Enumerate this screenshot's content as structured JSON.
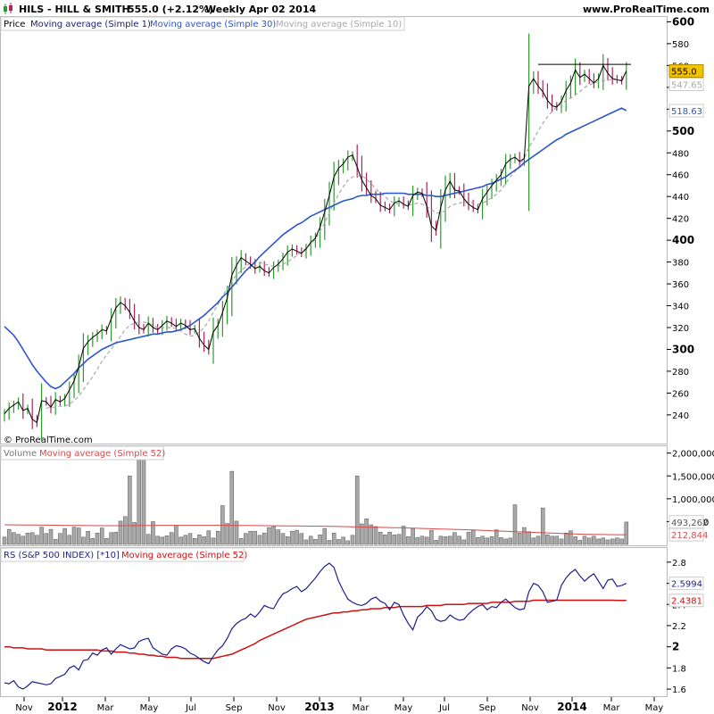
{
  "header": {
    "symbol": "HILS - HILL & SMITH",
    "last_change": "555.0 (+2.12%)",
    "period_date": "Weekly  Apr 02 2014",
    "website": "www.ProRealTime.com",
    "copyright": "© ProRealTime.com"
  },
  "colors": {
    "up_bar": "#2e9a2e",
    "down_bar": "#b0245a",
    "close_line": "#000000",
    "ma1": "#1b1b7a",
    "ma30": "#2a55d0",
    "ma10": "#a8a8a8",
    "volume_bar": "#a9a9a9",
    "vol_ma": "#d84a4a",
    "rs_line": "#1e1e8c",
    "rs_ma": "#d01010",
    "last_price_badge": "#f2c200"
  },
  "chart_data": [
    {
      "type": "ohlc",
      "name": "price",
      "legend": [
        "Price",
        "Moving average (Simple 1)",
        "Moving average (Simple 30)",
        "Moving average (Simple 10)"
      ],
      "x_ticks": [
        "Nov",
        "2012",
        "Mar",
        "May",
        "Jul",
        "Sep",
        "Nov",
        "2013",
        "Mar",
        "May",
        "Jul",
        "Sep",
        "Nov",
        "2014",
        "Mar",
        "May"
      ],
      "bold_x_ticks": [
        "2012",
        "2013",
        "2014"
      ],
      "y_ticks": [
        "240",
        "260",
        "280",
        "300",
        "320",
        "340",
        "360",
        "380",
        "400",
        "420",
        "440",
        "460",
        "480",
        "500",
        "520",
        "540",
        "560",
        "580",
        "600"
      ],
      "bold_y_ticks": [
        "300",
        "400",
        "500",
        "600"
      ],
      "ylim": [
        226,
        602
      ],
      "closes": [
        241,
        246,
        249,
        252,
        244,
        246,
        236,
        233,
        253,
        252,
        247,
        254,
        252,
        255,
        263,
        271,
        284,
        301,
        307,
        311,
        314,
        318,
        317,
        328,
        338,
        343,
        340,
        334,
        326,
        320,
        318,
        324,
        320,
        318,
        322,
        326,
        324,
        321,
        324,
        322,
        318,
        319,
        310,
        304,
        300,
        316,
        322,
        334,
        347,
        368,
        377,
        384,
        381,
        378,
        374,
        376,
        372,
        370,
        375,
        378,
        383,
        389,
        392,
        390,
        388,
        392,
        398,
        402,
        412,
        426,
        441,
        458,
        466,
        470,
        476,
        478,
        467,
        455,
        448,
        441,
        438,
        432,
        430,
        428,
        434,
        436,
        433,
        431,
        441,
        444,
        443,
        431,
        413,
        409,
        430,
        446,
        454,
        446,
        445,
        438,
        433,
        430,
        428,
        438,
        444,
        450,
        455,
        460,
        470,
        474,
        476,
        472,
        475,
        541,
        548,
        541,
        536,
        528,
        523,
        522,
        527,
        537,
        544,
        556,
        549,
        552,
        548,
        544,
        548,
        560,
        553,
        548,
        547,
        546,
        555
      ],
      "ma30_values": [
        321,
        317,
        313,
        307,
        300,
        293,
        286,
        280,
        275,
        270,
        266,
        264,
        266,
        270,
        274,
        278,
        283,
        287,
        291,
        294,
        297,
        300,
        302,
        304,
        306,
        307,
        308,
        309,
        310,
        311,
        312,
        313,
        314,
        314,
        315,
        316,
        316,
        317,
        318,
        320,
        322,
        325,
        328,
        331,
        335,
        339,
        343,
        348,
        352,
        357,
        362,
        367,
        372,
        376,
        380,
        385,
        389,
        393,
        397,
        401,
        405,
        408,
        411,
        414,
        416,
        419,
        422,
        424,
        426,
        428,
        430,
        432,
        434,
        436,
        437,
        438,
        440,
        441,
        441,
        442,
        442,
        442,
        443,
        443,
        443,
        443,
        443,
        442,
        442,
        442,
        442,
        441,
        441,
        440,
        440,
        441,
        442,
        443,
        444,
        445,
        446,
        447,
        448,
        449,
        451,
        452,
        454,
        456,
        458,
        461,
        464,
        467,
        471,
        474,
        477,
        480,
        483,
        486,
        489,
        492,
        494,
        497,
        499,
        501,
        503,
        505,
        507,
        509,
        511,
        513,
        515,
        517,
        519,
        521,
        518.63
      ],
      "ma10_values": [
        null,
        null,
        null,
        null,
        null,
        null,
        null,
        null,
        null,
        246,
        247,
        247,
        248,
        248,
        250,
        253,
        257,
        263,
        269,
        275,
        282,
        289,
        295,
        300,
        306,
        312,
        318,
        322,
        324,
        325,
        325,
        324,
        322,
        320,
        320,
        320,
        320,
        319,
        317,
        314,
        312,
        313,
        316,
        320,
        326,
        334,
        341,
        349,
        356,
        363,
        368,
        372,
        376,
        379,
        380,
        380,
        378,
        377,
        376,
        376,
        378,
        380,
        383,
        386,
        389,
        393,
        396,
        401,
        408,
        416,
        425,
        434,
        442,
        449,
        455,
        458,
        459,
        459,
        456,
        452,
        447,
        443,
        440,
        436,
        434,
        433,
        432,
        432,
        433,
        434,
        433,
        431,
        428,
        425,
        425,
        427,
        431,
        433,
        434,
        435,
        435,
        434,
        433,
        434,
        436,
        439,
        442,
        446,
        452,
        458,
        463,
        468,
        475,
        485,
        492,
        500,
        507,
        513,
        518,
        522,
        525,
        528,
        530,
        533,
        536,
        540,
        542,
        544,
        545,
        546,
        547,
        547,
        547,
        547,
        548
      ],
      "resistance_line": 561,
      "last_price_label": "555.0",
      "ma10_label": "547.65",
      "ma30_label": "518.63"
    },
    {
      "type": "bar",
      "name": "volume",
      "legend": [
        "Volume",
        "Moving average (Simple 52)"
      ],
      "y_ticks": [
        "500,000",
        "1,000,000",
        "1,500,000",
        "2,000,000"
      ],
      "ylim": [
        0,
        2150000
      ],
      "values": [
        160000,
        330000,
        260000,
        220000,
        180000,
        250000,
        260000,
        200000,
        380000,
        240000,
        330000,
        110000,
        240000,
        350000,
        200000,
        380000,
        360000,
        160000,
        290000,
        130000,
        250000,
        360000,
        130000,
        260000,
        270000,
        510000,
        610000,
        1500000,
        480000,
        2150000,
        2150000,
        220000,
        500000,
        180000,
        160000,
        190000,
        260000,
        420000,
        160000,
        200000,
        240000,
        130000,
        210000,
        170000,
        300000,
        140000,
        290000,
        850000,
        460000,
        1600000,
        510000,
        130000,
        240000,
        290000,
        290000,
        200000,
        250000,
        370000,
        390000,
        320000,
        240000,
        170000,
        290000,
        310000,
        240000,
        100000,
        180000,
        110000,
        210000,
        350000,
        90000,
        250000,
        110000,
        160000,
        80000,
        200000,
        1500000,
        450000,
        560000,
        430000,
        390000,
        270000,
        210000,
        270000,
        210000,
        220000,
        400000,
        170000,
        350000,
        150000,
        180000,
        160000,
        310000,
        90000,
        180000,
        170000,
        180000,
        260000,
        180000,
        100000,
        270000,
        310000,
        150000,
        180000,
        140000,
        170000,
        320000,
        150000,
        120000,
        140000,
        870000,
        250000,
        370000,
        280000,
        140000,
        180000,
        800000,
        210000,
        180000,
        180000,
        120000,
        250000,
        300000,
        170000,
        90000,
        180000,
        140000,
        180000,
        120000,
        140000,
        100000,
        120000,
        140000,
        120000,
        490000
      ],
      "ma52_values": [
        430000,
        430000,
        429000,
        428000,
        427000,
        426000,
        425000,
        424000,
        423000,
        422000,
        421000,
        420000,
        419000,
        418000,
        417000,
        416000,
        415000,
        414000,
        413000,
        412000,
        411000,
        410000,
        410000,
        410000,
        410000,
        410000,
        411000,
        412000,
        413000,
        414000,
        415000,
        416000,
        417000,
        418000,
        418000,
        418000,
        418000,
        418000,
        418000,
        418000,
        418000,
        418000,
        418000,
        418000,
        418000,
        418000,
        418000,
        418000,
        418000,
        418000,
        417000,
        416000,
        415000,
        414000,
        413000,
        412000,
        411000,
        410000,
        409000,
        408000,
        407000,
        406000,
        405000,
        404000,
        403000,
        402000,
        401000,
        400000,
        399000,
        398000,
        396000,
        394000,
        392000,
        390000,
        388000,
        386000,
        384000,
        382000,
        380000,
        378000,
        376000,
        374000,
        372000,
        370000,
        368000,
        365000,
        362000,
        359000,
        356000,
        353000,
        350000,
        347000,
        344000,
        341000,
        338000,
        335000,
        332000,
        329000,
        326000,
        323000,
        320000,
        316000,
        312000,
        308000,
        304000,
        300000,
        296000,
        292000,
        288000,
        284000,
        280000,
        276000,
        272000,
        268000,
        264000,
        260000,
        256000,
        252000,
        248000,
        244000,
        240000,
        236000,
        232000,
        228000,
        224000,
        222000,
        220000,
        218000,
        217000,
        216000,
        215000,
        214000,
        213500,
        213000,
        212844
      ],
      "last_volume_label": "493,262",
      "ma52_label": "212,844"
    },
    {
      "type": "line",
      "name": "relative-strength",
      "legend": [
        "RS (S&P 500 INDEX) [*10]",
        "Moving average (Simple 52)"
      ],
      "y_ticks": [
        "1.6",
        "1.8",
        "2",
        "2.2",
        "2.4",
        "2.6",
        "2.8"
      ],
      "bold_y_ticks": [
        "2"
      ],
      "ylim": [
        1.55,
        2.9
      ],
      "values": [
        1.66,
        1.65,
        1.68,
        1.62,
        1.6,
        1.63,
        1.67,
        1.66,
        1.65,
        1.64,
        1.65,
        1.7,
        1.72,
        1.74,
        1.8,
        1.82,
        1.78,
        1.87,
        1.88,
        1.94,
        1.92,
        1.97,
        1.99,
        1.93,
        1.98,
        2.02,
        2.0,
        1.98,
        1.99,
        2.05,
        2.07,
        2.08,
        1.99,
        1.96,
        1.93,
        1.92,
        1.98,
        2.01,
        2.0,
        1.98,
        1.94,
        1.92,
        1.89,
        1.86,
        1.84,
        1.91,
        1.97,
        2.01,
        2.08,
        2.17,
        2.22,
        2.25,
        2.27,
        2.31,
        2.28,
        2.33,
        2.39,
        2.37,
        2.36,
        2.44,
        2.5,
        2.52,
        2.55,
        2.57,
        2.52,
        2.55,
        2.6,
        2.65,
        2.71,
        2.76,
        2.79,
        2.75,
        2.62,
        2.53,
        2.45,
        2.42,
        2.4,
        2.39,
        2.41,
        2.45,
        2.47,
        2.43,
        2.41,
        2.35,
        2.42,
        2.4,
        2.3,
        2.22,
        2.16,
        2.28,
        2.32,
        2.38,
        2.34,
        2.26,
        2.24,
        2.25,
        2.3,
        2.27,
        2.25,
        2.26,
        2.31,
        2.35,
        2.38,
        2.4,
        2.35,
        2.38,
        2.37,
        2.42,
        2.45,
        2.41,
        2.37,
        2.35,
        2.36,
        2.52,
        2.6,
        2.58,
        2.52,
        2.42,
        2.43,
        2.44,
        2.58,
        2.65,
        2.7,
        2.73,
        2.67,
        2.62,
        2.66,
        2.69,
        2.62,
        2.55,
        2.63,
        2.64,
        2.57,
        2.58,
        2.5994
      ],
      "ma52_values": [
        2.0,
        2.0,
        1.99,
        1.99,
        1.99,
        1.98,
        1.98,
        1.98,
        1.98,
        1.97,
        1.97,
        1.97,
        1.97,
        1.97,
        1.97,
        1.97,
        1.97,
        1.97,
        1.97,
        1.97,
        1.97,
        1.96,
        1.96,
        1.96,
        1.95,
        1.95,
        1.95,
        1.94,
        1.94,
        1.93,
        1.93,
        1.92,
        1.92,
        1.91,
        1.91,
        1.9,
        1.9,
        1.9,
        1.89,
        1.89,
        1.89,
        1.89,
        1.89,
        1.89,
        1.89,
        1.89,
        1.9,
        1.91,
        1.92,
        1.93,
        1.95,
        1.97,
        1.99,
        2.01,
        2.03,
        2.06,
        2.08,
        2.1,
        2.12,
        2.14,
        2.16,
        2.18,
        2.2,
        2.22,
        2.24,
        2.26,
        2.27,
        2.28,
        2.29,
        2.3,
        2.31,
        2.32,
        2.32,
        2.33,
        2.33,
        2.34,
        2.34,
        2.35,
        2.35,
        2.36,
        2.36,
        2.36,
        2.37,
        2.37,
        2.37,
        2.38,
        2.38,
        2.38,
        2.38,
        2.38,
        2.38,
        2.39,
        2.39,
        2.39,
        2.39,
        2.4,
        2.4,
        2.4,
        2.4,
        2.4,
        2.41,
        2.41,
        2.41,
        2.41,
        2.41,
        2.42,
        2.42,
        2.42,
        2.42,
        2.42,
        2.43,
        2.43,
        2.43,
        2.43,
        2.44,
        2.44,
        2.44,
        2.44,
        2.44,
        2.44,
        2.44,
        2.44,
        2.44,
        2.44,
        2.44,
        2.44,
        2.44,
        2.44,
        2.44,
        2.44,
        2.44,
        2.44,
        2.4381,
        2.4381,
        2.4381
      ],
      "last_rs_label": "2.5994",
      "ma52_label": "2.4381"
    }
  ]
}
